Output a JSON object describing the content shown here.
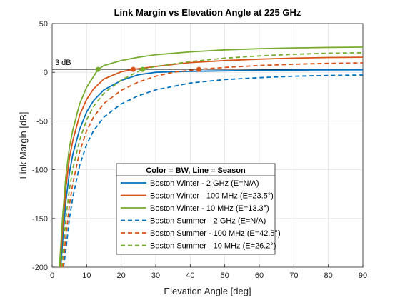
{
  "chart_data": {
    "type": "line",
    "title": "Link Margin vs Elevation Angle at 225 GHz",
    "xlabel": "Elevation Angle [deg]",
    "ylabel": "Link Margin [dB]",
    "xlim": [
      0,
      90
    ],
    "ylim": [
      -200,
      50
    ],
    "xticks": [
      0,
      10,
      20,
      30,
      40,
      50,
      60,
      70,
      80,
      90
    ],
    "yticks": [
      -200,
      -150,
      -100,
      -50,
      0,
      50
    ],
    "grid": true,
    "threshold": {
      "y": 3,
      "label": "3 dB"
    },
    "legend": {
      "title": "Color = BW, Line = Season",
      "placement": "lower-center"
    },
    "series": [
      {
        "name": "Boston Winter - 2 GHz (E=N/A)",
        "color": "#0072BD",
        "dash": "solid",
        "x": [
          2.5,
          3,
          4,
          5,
          6,
          8,
          10,
          12,
          15,
          20,
          25,
          30,
          40,
          50,
          60,
          70,
          80,
          90
        ],
        "y": [
          -200,
          -175,
          -132,
          -103,
          -84,
          -58,
          -40.6,
          -29,
          -18,
          -8.4,
          -2.5,
          0,
          1,
          1.5,
          2,
          2.3,
          2.5,
          2.6
        ]
      },
      {
        "name": "Boston Winter - 100 MHz (E=23.5°)",
        "color": "#D95319",
        "dash": "solid",
        "x": [
          2.3,
          3,
          4,
          5,
          6,
          8,
          10,
          12,
          15,
          20,
          23.5,
          30,
          40,
          50,
          60,
          70,
          80,
          90
        ],
        "y": [
          -200,
          -161,
          -118,
          -88,
          -70,
          -43.5,
          -27.8,
          -17,
          -6.8,
          0.5,
          3,
          6,
          10,
          12,
          13.5,
          14.5,
          15.2,
          15.5
        ]
      },
      {
        "name": "Boston Winter - 10 MHz (E=13.3°)",
        "color": "#77AC30",
        "dash": "solid",
        "x": [
          2.1,
          3,
          4,
          5,
          6,
          8,
          10,
          13.3,
          15,
          20,
          25,
          30,
          40,
          50,
          60,
          70,
          80,
          90
        ],
        "y": [
          -200,
          -150,
          -106,
          -77,
          -59,
          -32,
          -15.3,
          3,
          7,
          12,
          15.5,
          18,
          21,
          23,
          24.2,
          25,
          25.5,
          25.8
        ]
      },
      {
        "name": "Boston Summer - 2 GHz (E=N/A)",
        "color": "#0072BD",
        "dash": "dashed",
        "x": [
          3.3,
          4,
          5,
          6,
          8,
          10,
          12,
          15,
          20,
          25,
          30,
          40,
          50,
          60,
          70,
          80,
          90
        ],
        "y": [
          -200,
          -182,
          -150,
          -128,
          -95,
          -74,
          -60,
          -46,
          -32.5,
          -24,
          -18,
          -11,
          -7.5,
          -5.5,
          -4,
          -3.2,
          -2.8
        ]
      },
      {
        "name": "Boston Summer - 100 MHz (E=42.5°)",
        "color": "#D95319",
        "dash": "dashed",
        "x": [
          3.1,
          4,
          5,
          6,
          8,
          10,
          12,
          15,
          20,
          25,
          30,
          35,
          42.5,
          50,
          60,
          70,
          80,
          90
        ],
        "y": [
          -200,
          -168,
          -136,
          -114,
          -81,
          -60,
          -46,
          -32,
          -18.5,
          -10,
          -4,
          0,
          3,
          5,
          7,
          8.3,
          9.2,
          9.7
        ]
      },
      {
        "name": "Boston Summer - 10 MHz (E=26.2°)",
        "color": "#77AC30",
        "dash": "dashed",
        "x": [
          2.8,
          3,
          4,
          5,
          6,
          8,
          10,
          12,
          15,
          20,
          26.2,
          30,
          40,
          50,
          60,
          70,
          80,
          90
        ],
        "y": [
          -200,
          -190,
          -150,
          -120,
          -99,
          -69,
          -48.7,
          -35,
          -21.5,
          -8,
          3,
          6,
          11,
          14.5,
          16.8,
          18.5,
          19.6,
          20.1
        ]
      }
    ],
    "markers": [
      {
        "x": 13.3,
        "y": 3,
        "color": "#77AC30"
      },
      {
        "x": 23.5,
        "y": 3,
        "color": "#D95319"
      },
      {
        "x": 26.2,
        "y": 3,
        "color": "#77AC30"
      },
      {
        "x": 42.5,
        "y": 3,
        "color": "#D95319"
      }
    ]
  }
}
